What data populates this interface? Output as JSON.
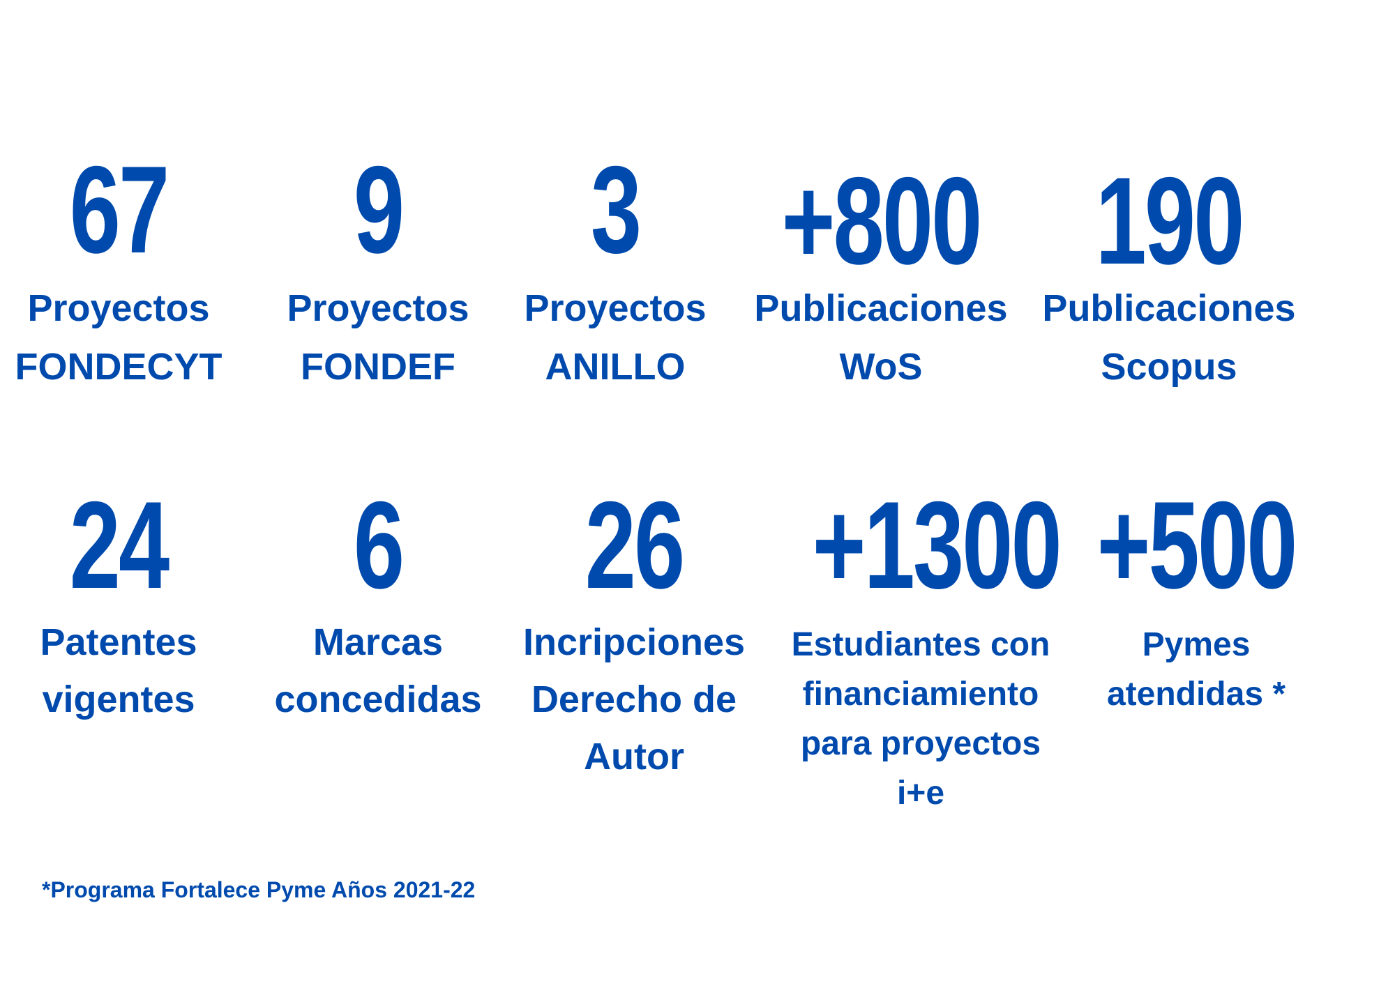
{
  "accent_color": "#004AAD",
  "rows": [
    [
      {
        "value": "67",
        "label": [
          "Proyectos",
          "FONDECYT"
        ]
      },
      {
        "value": "9",
        "label": [
          "Proyectos",
          "FONDEF"
        ]
      },
      {
        "value": "3",
        "label": [
          "Proyectos",
          "ANILLO"
        ]
      },
      {
        "value": "+800",
        "label": [
          "Publicaciones",
          "WoS"
        ]
      },
      {
        "value": "190",
        "label": [
          "Publicaciones",
          "Scopus"
        ]
      }
    ],
    [
      {
        "value": "24",
        "label": [
          "Patentes",
          "vigentes"
        ]
      },
      {
        "value": "6",
        "label": [
          "Marcas",
          "concedidas"
        ]
      },
      {
        "value": "26",
        "label": [
          "Incripciones",
          "Derecho de",
          "Autor"
        ]
      },
      {
        "value": "+1300",
        "label": [
          "Estudiantes con",
          "financiamiento",
          "para proyectos",
          "i+e"
        ]
      },
      {
        "value": "+500",
        "label": [
          "Pymes",
          "atendidas *"
        ]
      }
    ]
  ],
  "footnote": "*Programa Fortalece Pyme Años 2021-22"
}
